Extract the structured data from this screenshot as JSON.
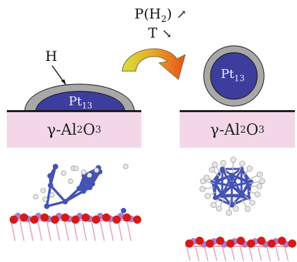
{
  "conditions": {
    "pressure_prefix": "P(H",
    "pressure_sub": "2",
    "pressure_suffix": ")",
    "pressure_arrow": "↗",
    "temperature": "T",
    "temperature_arrow": "↘"
  },
  "left_panel": {
    "hydrogen_label": "H",
    "cluster_label": "Pt",
    "cluster_sub": "13",
    "support_prefix": "γ-Al",
    "support_sub1": "2",
    "support_mid": "O",
    "support_sub2": "3"
  },
  "right_panel": {
    "cluster_label": "Pt",
    "cluster_sub": "13",
    "support_prefix": "γ-Al",
    "support_sub1": "2",
    "support_mid": "O",
    "support_sub2": "3"
  },
  "colors": {
    "cluster_fill": "#3d3d9e",
    "hydrogen_shell": "#a8a8a8",
    "substrate": "#f3d7e8",
    "arrow_start": "#d6e23a",
    "arrow_end": "#e8501c",
    "atom_pt": "#4453b5",
    "atom_h": "#e6e6e6",
    "atom_o": "#d41a1a",
    "atom_al": "#b07ac6"
  }
}
